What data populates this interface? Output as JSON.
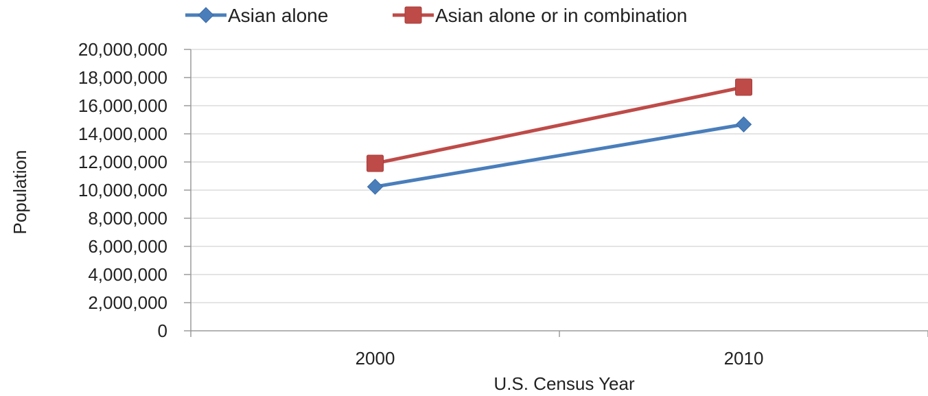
{
  "chart_data": {
    "type": "line",
    "title": "",
    "xlabel": "U.S. Census Year",
    "ylabel": "Population",
    "categories": [
      "2000",
      "2010"
    ],
    "ylim": [
      0,
      20000000
    ],
    "yticks": [
      0,
      2000000,
      4000000,
      6000000,
      8000000,
      10000000,
      12000000,
      14000000,
      16000000,
      18000000,
      20000000
    ],
    "ytick_labels": [
      "0",
      "2,000,000",
      "4,000,000",
      "6,000,000",
      "8,000,000",
      "10,000,000",
      "12,000,000",
      "14,000,000",
      "16,000,000",
      "18,000,000",
      "20,000,000"
    ],
    "grid": true,
    "legend_position": "top",
    "series": [
      {
        "name": "Asian alone",
        "values": [
          10240000,
          14670000
        ],
        "color": "#4a7ebb",
        "marker": "diamond"
      },
      {
        "name": "Asian alone or in combination",
        "values": [
          11900000,
          17320000
        ],
        "color": "#be4b48",
        "marker": "square"
      }
    ]
  }
}
